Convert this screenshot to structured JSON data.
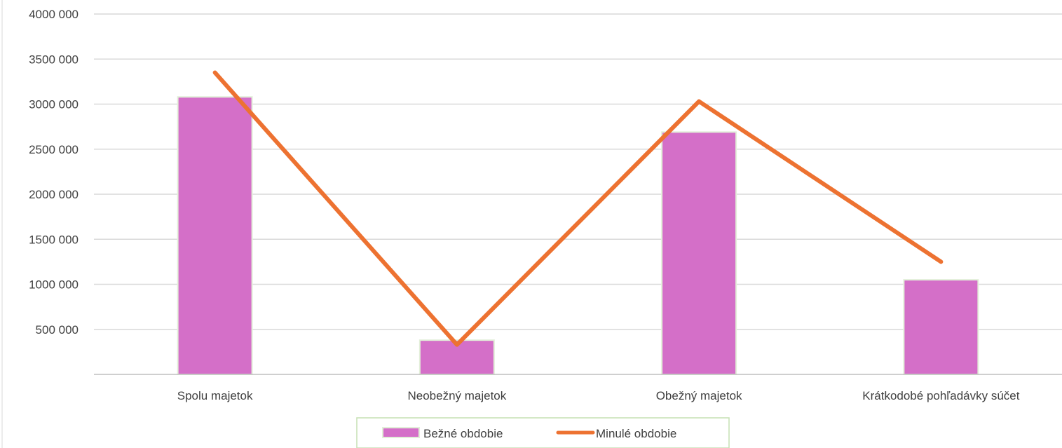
{
  "chart_data": {
    "type": "bar",
    "categories": [
      "Spolu majetok",
      "Neobežný majetok",
      "Obežný majetok",
      "Krátkodobé pohľadávky súčet"
    ],
    "series": [
      {
        "name": "Bežné obdobie",
        "kind": "bar",
        "color": "#d46fc8",
        "values": [
          3080000,
          380000,
          2690000,
          1050000
        ]
      },
      {
        "name": "Minulé obdobie",
        "kind": "line",
        "color": "#ed7231",
        "values": [
          3350000,
          330000,
          3030000,
          1250000
        ]
      }
    ],
    "ylim": [
      0,
      4000000
    ],
    "yticks": [
      {
        "value": 500000,
        "label": "500 000"
      },
      {
        "value": 1000000,
        "label": "1000 000"
      },
      {
        "value": 1500000,
        "label": "1500 000"
      },
      {
        "value": 2000000,
        "label": "2000 000"
      },
      {
        "value": 2500000,
        "label": "2500 000"
      },
      {
        "value": 3000000,
        "label": "3000 000"
      },
      {
        "value": 3500000,
        "label": "3500 000"
      },
      {
        "value": 4000000,
        "label": "4000 000"
      }
    ],
    "grid": true,
    "legend_position": "bottom",
    "colors": {
      "gridline": "#d9d9d9",
      "axis": "#bfbfbf",
      "text": "#404040",
      "bar_border": "#e2efd9",
      "legend_border": "#c6e0b4"
    }
  }
}
